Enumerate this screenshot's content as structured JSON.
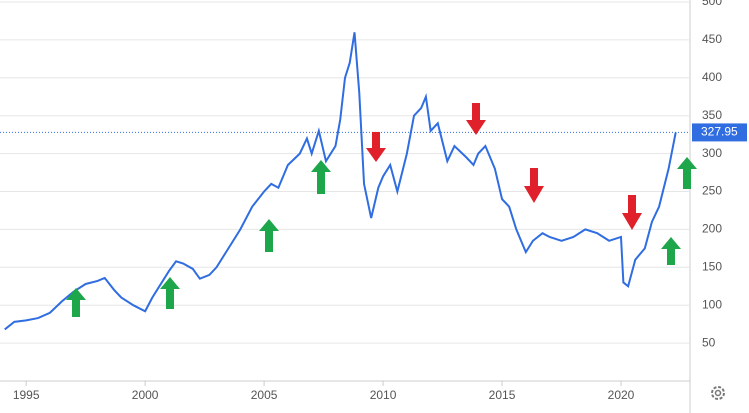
{
  "chart_data": {
    "type": "line",
    "x": [
      1994.1,
      1994.5,
      1995,
      1995.5,
      1996,
      1996.5,
      1997,
      1997.5,
      1998,
      1998.3,
      1998.7,
      1999,
      1999.5,
      2000,
      2000.3,
      2000.7,
      2001,
      2001.3,
      2001.6,
      2002,
      2002.3,
      2002.7,
      2003,
      2003.5,
      2004,
      2004.5,
      2005,
      2005.3,
      2005.6,
      2006,
      2006.5,
      2006.8,
      2007,
      2007.3,
      2007.6,
      2008,
      2008.2,
      2008.4,
      2008.6,
      2008.8,
      2009,
      2009.2,
      2009.5,
      2009.8,
      2010,
      2010.3,
      2010.6,
      2011,
      2011.3,
      2011.6,
      2011.8,
      2012,
      2012.3,
      2012.7,
      2013,
      2013.5,
      2013.8,
      2014,
      2014.3,
      2014.7,
      2015,
      2015.3,
      2015.6,
      2016,
      2016.3,
      2016.7,
      2017,
      2017.5,
      2018,
      2018.5,
      2019,
      2019.5,
      2020,
      2020.1,
      2020.3,
      2020.6,
      2021,
      2021.3,
      2021.6,
      2022,
      2022.3
    ],
    "series": [
      {
        "color": "#2f6de1",
        "values": [
          68,
          78,
          80,
          83,
          90,
          105,
          118,
          128,
          132,
          136,
          120,
          110,
          100,
          92,
          110,
          130,
          145,
          158,
          155,
          148,
          135,
          140,
          150,
          175,
          200,
          230,
          250,
          260,
          255,
          285,
          300,
          320,
          300,
          330,
          290,
          310,
          345,
          400,
          420,
          460,
          380,
          260,
          215,
          255,
          270,
          285,
          250,
          300,
          350,
          360,
          375,
          330,
          340,
          290,
          310,
          295,
          285,
          300,
          310,
          280,
          240,
          230,
          200,
          170,
          185,
          195,
          190,
          185,
          190,
          200,
          195,
          185,
          190,
          130,
          125,
          160,
          175,
          210,
          230,
          280,
          327.95
        ]
      }
    ],
    "xlim": [
      1993.9,
      2022.9
    ],
    "xticks": [
      1995,
      2000,
      2005,
      2010,
      2015,
      2020
    ],
    "ylim": [
      0,
      500
    ],
    "yticks": [
      50,
      100,
      150,
      200,
      250,
      300,
      350,
      400,
      450,
      500
    ],
    "grid": true
  }
}
